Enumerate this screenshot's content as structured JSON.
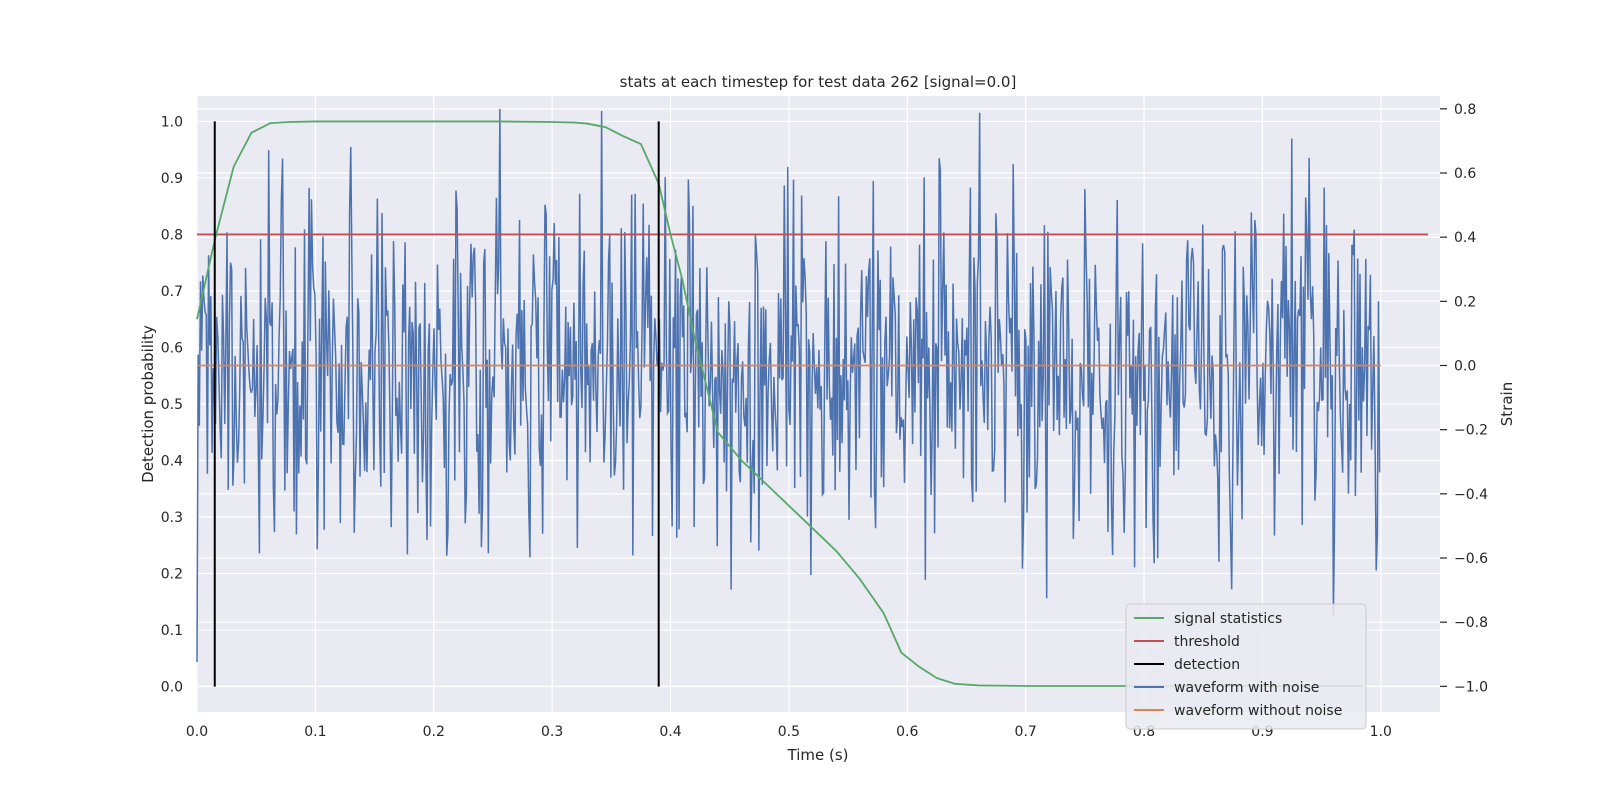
{
  "chart_data": {
    "type": "line",
    "title": "stats at each timestep for test data 262 [signal=0.0]",
    "xlabel": "Time (s)",
    "ylabel_left": "Detection probability",
    "ylabel_right": "Strain",
    "xlim": [
      0.0,
      1.05
    ],
    "ylim_left": [
      -0.045,
      1.045
    ],
    "ylim_right": [
      -1.08,
      0.84
    ],
    "x_ticks": [
      0.0,
      0.1,
      0.2,
      0.3,
      0.4,
      0.5,
      0.6,
      0.7,
      0.8,
      0.9,
      1.0
    ],
    "x_tick_labels": [
      "0.0",
      "0.1",
      "0.2",
      "0.3",
      "0.4",
      "0.5",
      "0.6",
      "0.7",
      "0.8",
      "0.9",
      "1.0"
    ],
    "y_left_ticks": [
      0.0,
      0.1,
      0.2,
      0.3,
      0.4,
      0.5,
      0.6,
      0.7,
      0.8,
      0.9,
      1.0
    ],
    "y_left_tick_labels": [
      "0.0",
      "0.1",
      "0.2",
      "0.3",
      "0.4",
      "0.5",
      "0.6",
      "0.7",
      "0.8",
      "0.9",
      "1.0"
    ],
    "y_right_ticks": [
      -1.0,
      -0.8,
      -0.6,
      -0.4,
      -0.2,
      0.0,
      0.2,
      0.4,
      0.6,
      0.8
    ],
    "y_right_tick_labels": [
      "−1.0",
      "−0.8",
      "−0.6",
      "−0.4",
      "−0.2",
      "0.0",
      "0.2",
      "0.4",
      "0.6",
      "0.8"
    ],
    "grid": true,
    "legend_position": "lower-right",
    "colors": {
      "signal_statistics": "#55a868",
      "threshold": "#c44e52",
      "detection": "#000000",
      "waveform_with_noise": "#4c72b0",
      "waveform_without_noise": "#dd8452",
      "plot_background": "#eaeaf2",
      "grid": "#ffffff"
    },
    "series": [
      {
        "name": "signal statistics",
        "axis": "left",
        "x": [
          0.0,
          0.015,
          0.031,
          0.046,
          0.062,
          0.078,
          0.1,
          0.15,
          0.2,
          0.25,
          0.3,
          0.32,
          0.33,
          0.345,
          0.359,
          0.375,
          0.39,
          0.4,
          0.41,
          0.42,
          0.44,
          0.46,
          0.48,
          0.5,
          0.52,
          0.54,
          0.56,
          0.58,
          0.595,
          0.61,
          0.625,
          0.64,
          0.66,
          0.7,
          0.8,
          0.9,
          0.985
        ],
        "y": [
          0.65,
          0.79,
          0.92,
          0.98,
          0.997,
          0.999,
          1.0,
          1.0,
          1.0,
          1.0,
          0.999,
          0.998,
          0.996,
          0.99,
          0.975,
          0.96,
          0.89,
          0.8,
          0.72,
          0.62,
          0.45,
          0.4,
          0.36,
          0.32,
          0.28,
          0.24,
          0.19,
          0.13,
          0.06,
          0.035,
          0.015,
          0.005,
          0.002,
          0.001,
          0.001,
          0.001,
          0.001
        ]
      },
      {
        "name": "threshold",
        "axis": "left",
        "x": [
          0.0,
          1.04
        ],
        "y": [
          0.8,
          0.8
        ]
      },
      {
        "name": "detection",
        "axis": "left",
        "segments": [
          {
            "x": 0.015,
            "y": [
              0.0,
              1.0
            ]
          },
          {
            "x": 0.39,
            "y": [
              0.0,
              1.0
            ]
          }
        ]
      },
      {
        "name": "waveform with noise",
        "axis": "right",
        "sample_rate_hz": 1024,
        "duration_s": 1.0,
        "min": -1.0,
        "max": 0.8,
        "std_estimate": 0.27
      },
      {
        "name": "waveform without noise",
        "axis": "right",
        "x": [
          0.0,
          1.0
        ],
        "y": [
          0.0,
          0.0
        ]
      }
    ],
    "legend": [
      "signal statistics",
      "threshold",
      "detection",
      "waveform with noise",
      "waveform without noise"
    ]
  }
}
